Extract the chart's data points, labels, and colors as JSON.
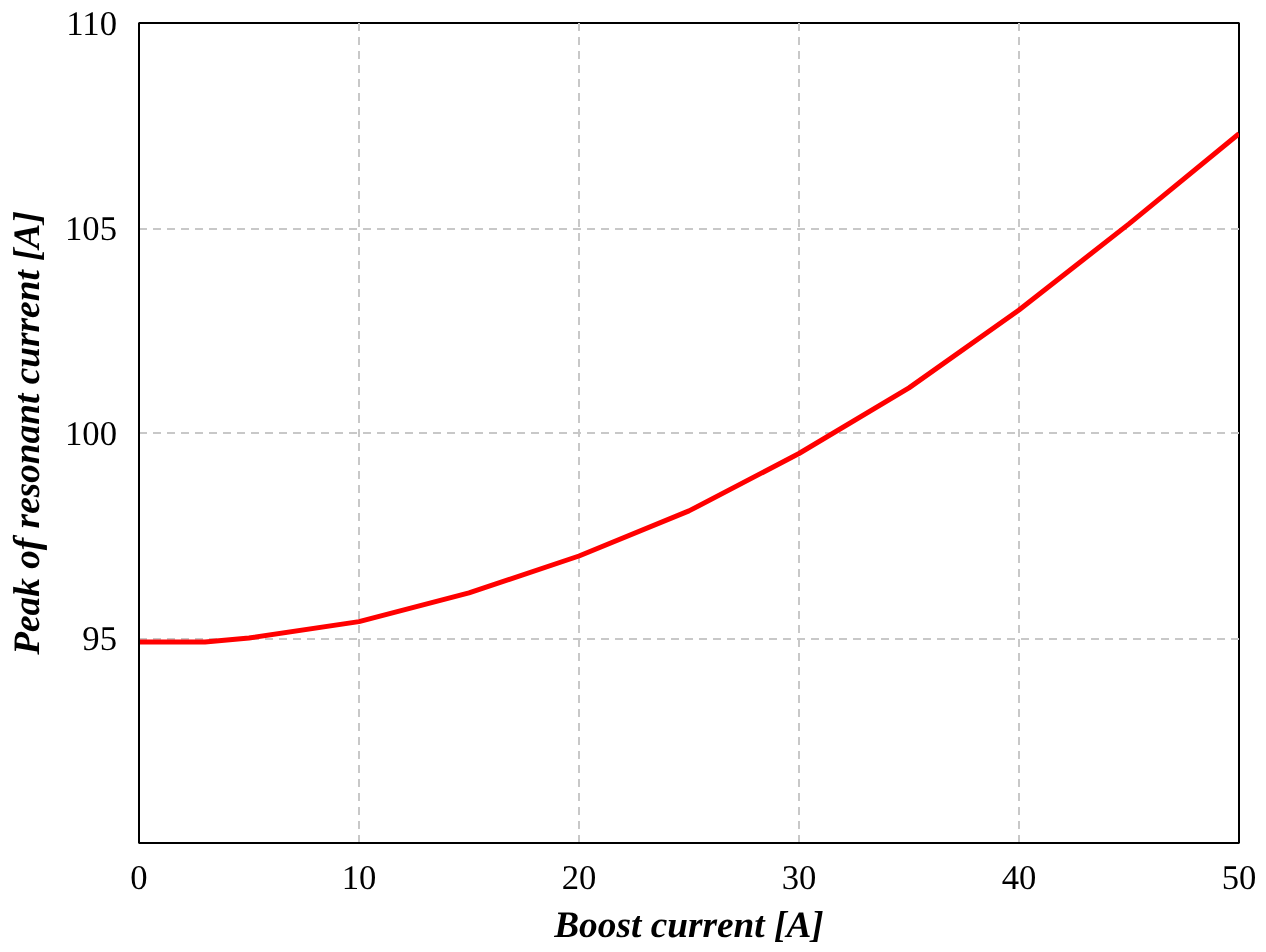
{
  "chart_data": {
    "type": "line",
    "xlabel": "Boost current [A]",
    "ylabel": "Peak of resonant current [A]",
    "x": [
      0,
      3,
      5,
      10,
      15,
      20,
      25,
      30,
      35,
      40,
      45,
      50
    ],
    "series": [
      {
        "color": "#ff0000",
        "values": [
          94.9,
          94.9,
          95.0,
          95.4,
          96.1,
          97.0,
          98.1,
          99.5,
          101.1,
          103.0,
          105.1,
          107.3
        ]
      }
    ],
    "xlim": [
      0,
      50
    ],
    "ylim": [
      90,
      110
    ],
    "xticks": [
      0,
      10,
      20,
      30,
      40,
      50
    ],
    "yticks": [
      95,
      100,
      105,
      110
    ],
    "grid": true,
    "line_style": "solid",
    "marker": "none"
  }
}
